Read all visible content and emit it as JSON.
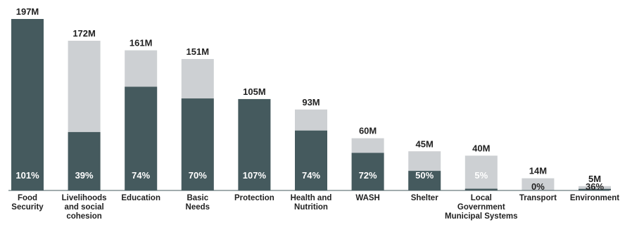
{
  "chart_data": {
    "type": "bar",
    "categories": [
      [
        "Food",
        "Security"
      ],
      [
        "Livelihoods",
        "and social",
        "cohesion"
      ],
      [
        "Education"
      ],
      [
        "Basic",
        "Needs"
      ],
      [
        "Protection"
      ],
      [
        "Health and",
        "Nutrition"
      ],
      [
        "WASH"
      ],
      [
        "Shelter"
      ],
      [
        "Local",
        "Government",
        "Municipal Systems"
      ],
      [
        "Transport"
      ],
      [
        "Environment"
      ]
    ],
    "values": [
      197,
      172,
      161,
      151,
      105,
      93,
      60,
      45,
      40,
      14,
      5
    ],
    "value_labels": [
      "197M",
      "172M",
      "161M",
      "151M",
      "105M",
      "93M",
      "60M",
      "45M",
      "40M",
      "14M",
      "5M"
    ],
    "percent_labels": [
      "101%",
      "39%",
      "74%",
      "70%",
      "107%",
      "74%",
      "72%",
      "50%",
      "5%",
      "0%",
      "36%"
    ],
    "ylim": [
      0,
      197
    ],
    "grid": false,
    "colors": {
      "funded": "#455a5e",
      "requirement": "#cdd0d3",
      "text": "#222222"
    }
  }
}
